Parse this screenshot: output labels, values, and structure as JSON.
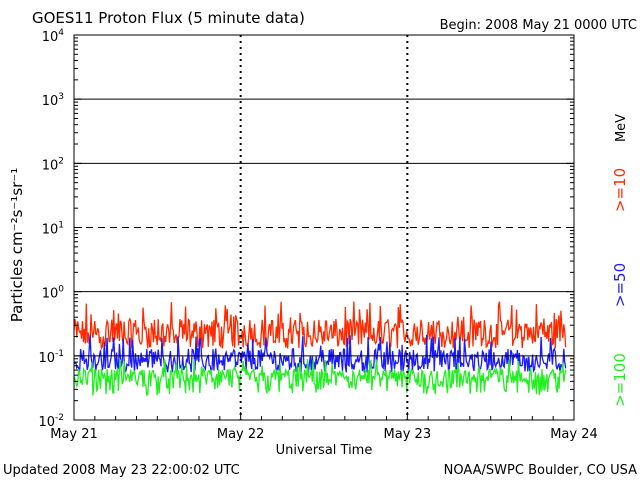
{
  "header": {
    "title": "GOES11 Proton Flux (5 minute data)",
    "begin": "Begin: 2008 May 21 0000 UTC"
  },
  "footer": {
    "updated": "Updated 2008 May 23 22:00:02 UTC",
    "credit": "NOAA/SWPC Boulder, CO USA"
  },
  "chart_data": {
    "type": "line",
    "title": "GOES11 Proton Flux (5 minute data)",
    "xlabel": "Universal Time",
    "ylabel": "Particles cm⁻²s⁻¹sr⁻¹",
    "yscale": "log",
    "ylim": [
      0.01,
      10000
    ],
    "xlim_days": [
      0,
      3
    ],
    "x_ticks": [
      "May 21",
      "May 22",
      "May 23",
      "May 24"
    ],
    "y_ticks": [
      {
        "base": "10",
        "exp": "4"
      },
      {
        "base": "10",
        "exp": "3"
      },
      {
        "base": "10",
        "exp": "2"
      },
      {
        "base": "10",
        "exp": "1"
      },
      {
        "base": "10",
        "exp": "0"
      },
      {
        "base": "10",
        "exp": "-1"
      },
      {
        "base": "10",
        "exp": "-2"
      }
    ],
    "threshold_lines": [
      {
        "value": 1000,
        "style": "solid"
      },
      {
        "value": 100,
        "style": "solid"
      },
      {
        "value": 10,
        "style": "dashed"
      },
      {
        "value": 1,
        "style": "solid"
      },
      {
        "value": 0.1,
        "style": "solid"
      }
    ],
    "legend_unit": "MeV",
    "series": [
      {
        "name": ">=10",
        "color": "#ff2a00",
        "baseline": 0.2,
        "low": 0.13,
        "high": 0.45,
        "max": 0.72
      },
      {
        "name": ">=50",
        "color": "#1a1aff",
        "baseline": 0.08,
        "low": 0.055,
        "high": 0.15,
        "max": 0.22
      },
      {
        "name": ">=100",
        "color": "#22ee22",
        "baseline": 0.045,
        "low": 0.024,
        "high": 0.07,
        "max": 0.09
      }
    ]
  }
}
